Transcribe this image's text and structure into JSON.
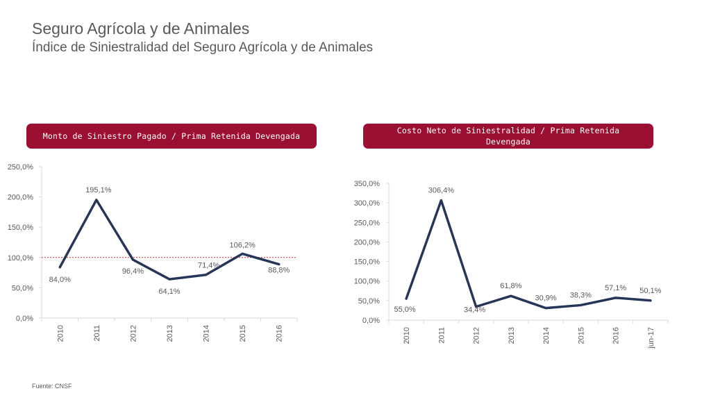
{
  "header": {
    "title": "Seguro Agrícola y de Animales",
    "subtitle": "Índice de Siniestralidad del Seguro Agrícola y de Animales"
  },
  "footer": {
    "source": "Fuente: CNSF"
  },
  "colors": {
    "banner": "#9b0f32",
    "line": "#263659",
    "reference": "#d9262a",
    "axis": "#d9d9d9"
  },
  "chart_data": [
    {
      "type": "line",
      "banner": "Monto de Siniestro Pagado / Prima Retenida Devengada",
      "categories": [
        "2010",
        "2011",
        "2012",
        "2013",
        "2014",
        "2015",
        "2016"
      ],
      "values": [
        84.0,
        195.1,
        96.4,
        64.1,
        71.4,
        106.2,
        88.8
      ],
      "data_labels": [
        "84,0%",
        "195,1%",
        "96,4%",
        "64,1%",
        "71,4%",
        "106,2%",
        "88,8%"
      ],
      "yticks": [
        "0,0%",
        "50,0%",
        "100,0%",
        "150,0%",
        "200,0%",
        "250,0%"
      ],
      "ylim": [
        0,
        250
      ],
      "reference_line": 100,
      "grid": false
    },
    {
      "type": "line",
      "banner": "Costo Neto de Siniestralidad / Prima Retenida Devengada",
      "categories": [
        "2010",
        "2011",
        "2012",
        "2013",
        "2014",
        "2015",
        "2016",
        "jun-17"
      ],
      "values": [
        55.0,
        306.4,
        34.4,
        61.8,
        30.9,
        38.3,
        57.1,
        50.1
      ],
      "data_labels": [
        "55,0%",
        "306,4%",
        "34,4%",
        "61,8%",
        "30,9%",
        "38,3%",
        "57,1%",
        "50,1%"
      ],
      "yticks": [
        "0,0%",
        "50,0%",
        "100,0%",
        "150,0%",
        "200,0%",
        "250,0%",
        "300,0%",
        "350,0%"
      ],
      "ylim": [
        0,
        350
      ],
      "grid": false
    }
  ]
}
